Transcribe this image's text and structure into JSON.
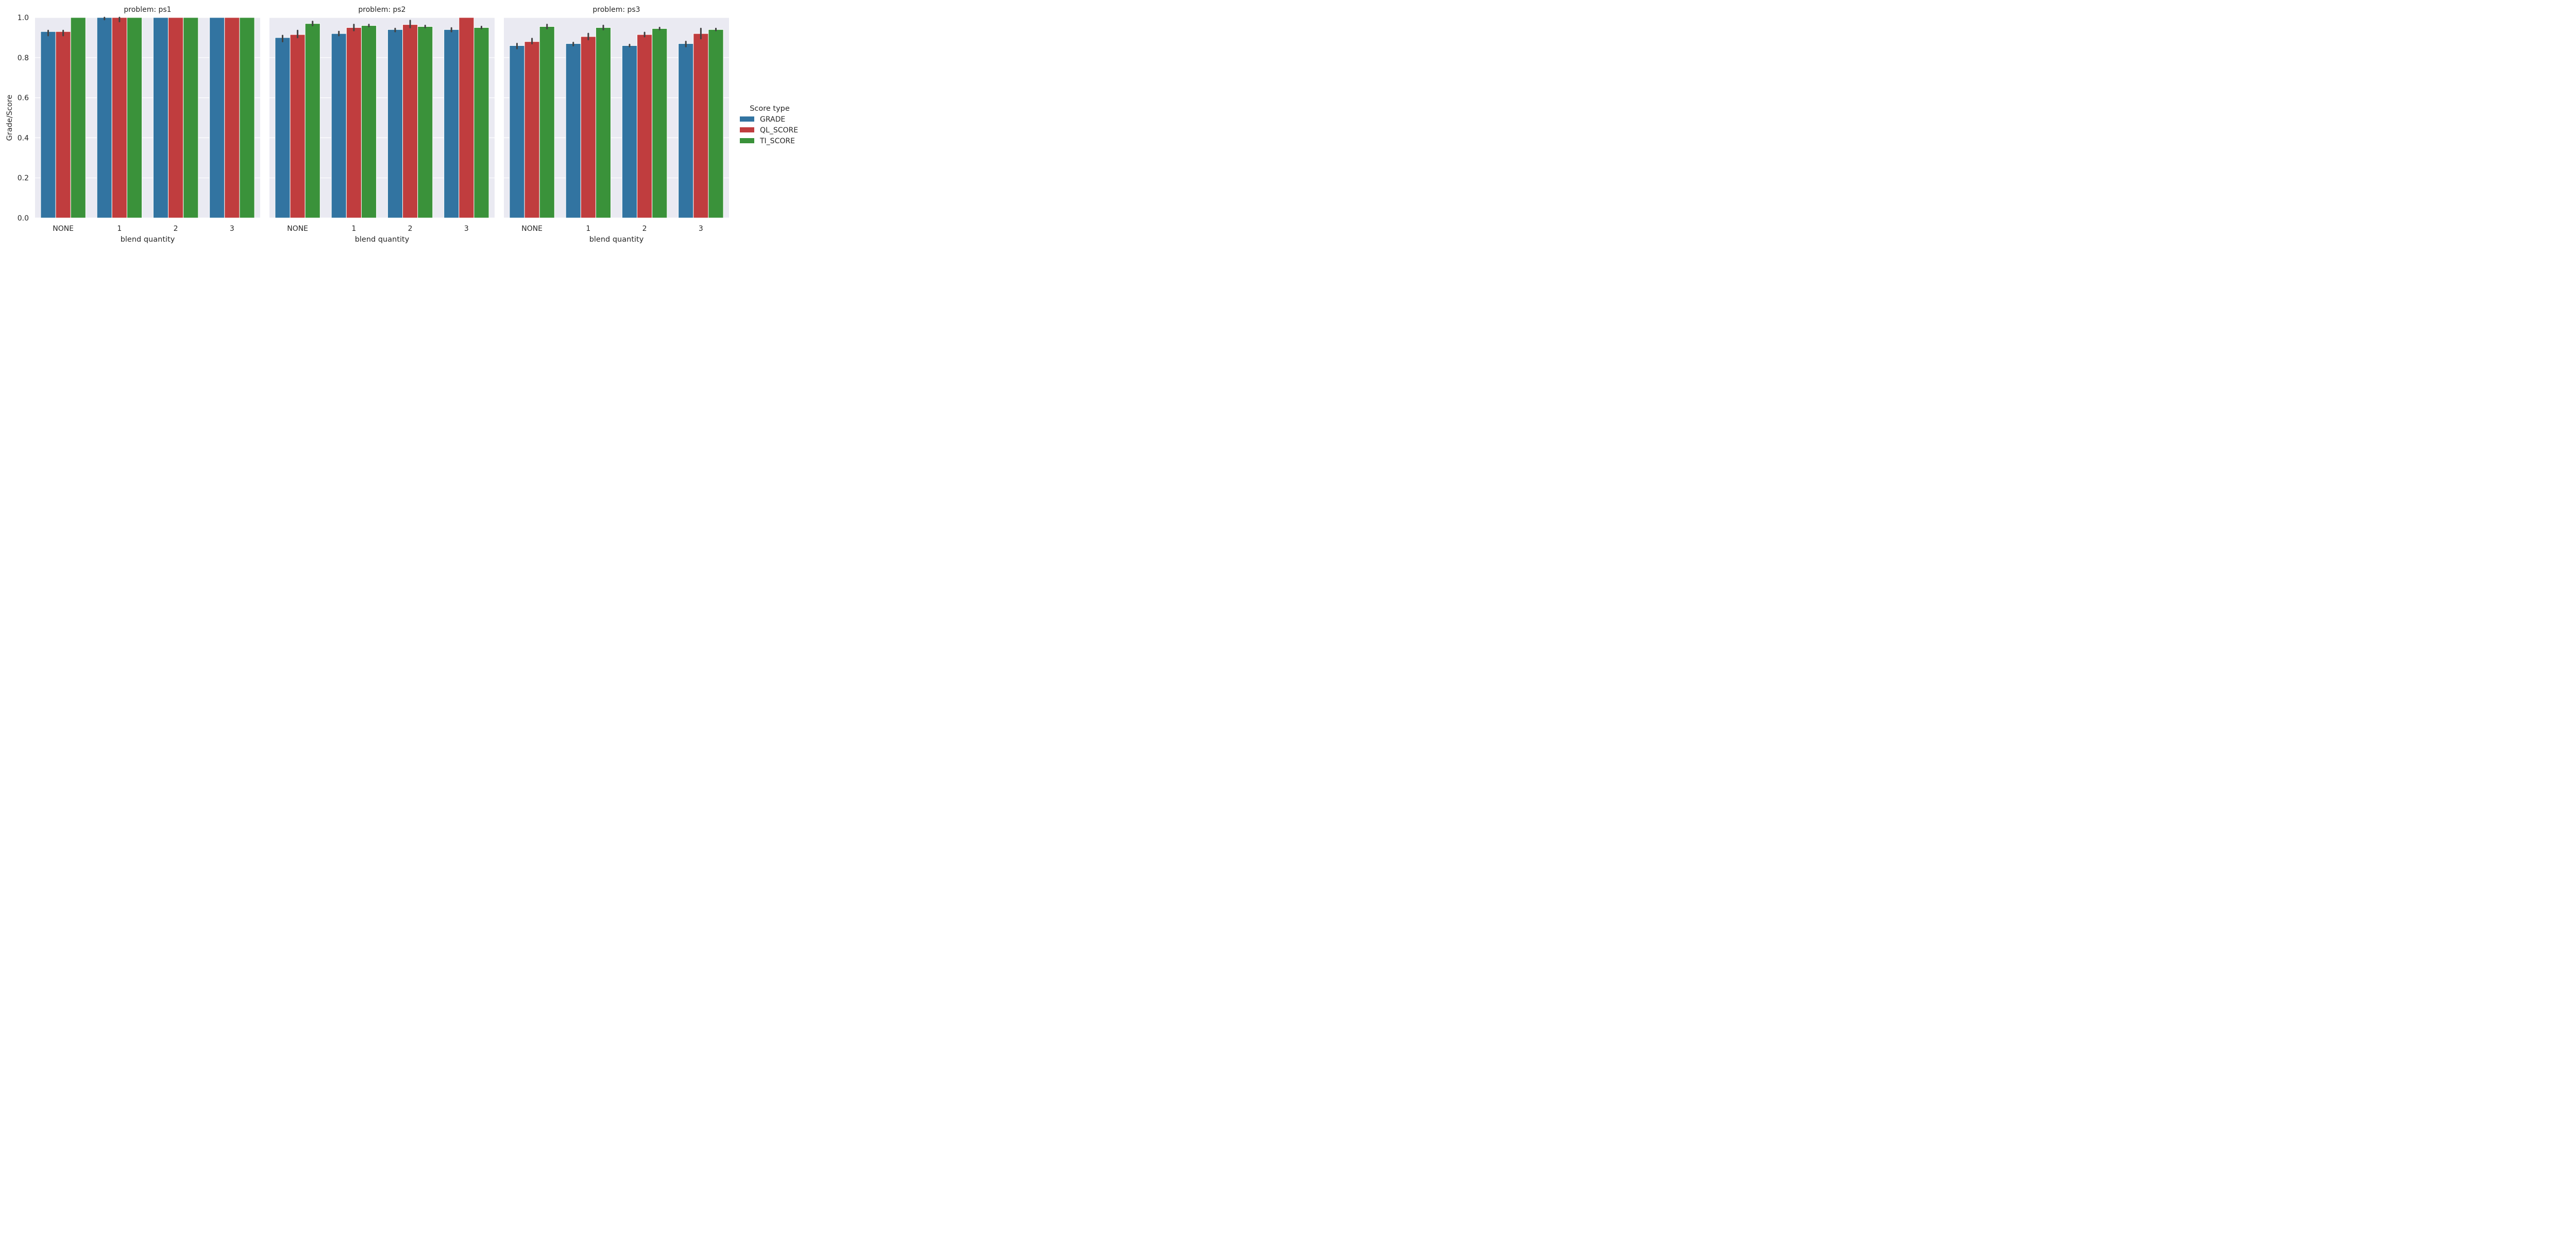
{
  "chart_data": {
    "type": "bar",
    "facet_label": "problem",
    "ylabel": "Grade/Score",
    "xlabel": "blend quantity",
    "ylim": [
      0,
      1.0
    ],
    "yticks": [
      0.0,
      0.2,
      0.4,
      0.6,
      0.8,
      1.0
    ],
    "ytick_labels": [
      "0.0",
      "0.2",
      "0.4",
      "0.6",
      "0.8",
      "1.0"
    ],
    "categories": [
      "NONE",
      "1",
      "2",
      "3"
    ],
    "legend": {
      "title": "Score type",
      "placement": "right",
      "entries": [
        "GRADE",
        "QL_SCORE",
        "TI_SCORE"
      ]
    },
    "colors": {
      "GRADE": "#3274a1",
      "QL_SCORE": "#c03d3e",
      "TI_SCORE": "#3a923a",
      "errorbar": "#424242",
      "panel_bg": "#eaeaf2",
      "grid": "#ffffff"
    },
    "grid": true,
    "panels": [
      {
        "title": "problem: ps1",
        "series": [
          {
            "name": "GRADE",
            "values": [
              0.93,
              1.0,
              1.0,
              1.0
            ],
            "err": [
              [
                0.91,
                0.935
              ],
              [
                0.99,
                1.0
              ],
              null,
              null
            ]
          },
          {
            "name": "QL_SCORE",
            "values": [
              0.93,
              1.0,
              1.0,
              1.0
            ],
            "err": [
              [
                0.91,
                0.935
              ],
              [
                0.98,
                1.0
              ],
              null,
              null
            ]
          },
          {
            "name": "TI_SCORE",
            "values": [
              1.0,
              1.0,
              1.0,
              1.0
            ],
            "err": [
              null,
              null,
              null,
              null
            ]
          }
        ]
      },
      {
        "title": "problem: ps2",
        "series": [
          {
            "name": "GRADE",
            "values": [
              0.9,
              0.92,
              0.94,
              0.94
            ],
            "err": [
              [
                0.88,
                0.91
              ],
              [
                0.91,
                0.93
              ],
              [
                0.93,
                0.945
              ],
              [
                0.93,
                0.948
              ]
            ]
          },
          {
            "name": "QL_SCORE",
            "values": [
              0.915,
              0.95,
              0.965,
              1.0
            ],
            "err": [
              [
                0.9,
                0.935
              ],
              [
                0.935,
                0.965
              ],
              [
                0.95,
                0.985
              ],
              null
            ]
          },
          {
            "name": "TI_SCORE",
            "values": [
              0.97,
              0.96,
              0.955,
              0.95
            ],
            "err": [
              [
                0.96,
                0.98
              ],
              [
                0.955,
                0.965
              ],
              [
                0.95,
                0.96
              ],
              [
                0.945,
                0.955
              ]
            ]
          }
        ]
      },
      {
        "title": "problem: ps3",
        "series": [
          {
            "name": "GRADE",
            "values": [
              0.86,
              0.87,
              0.86,
              0.87
            ],
            "err": [
              [
                0.845,
                0.87
              ],
              [
                0.86,
                0.875
              ],
              [
                0.855,
                0.865
              ],
              [
                0.855,
                0.88
              ]
            ]
          },
          {
            "name": "QL_SCORE",
            "values": [
              0.88,
              0.905,
              0.915,
              0.92
            ],
            "err": [
              [
                0.87,
                0.895
              ],
              [
                0.89,
                0.92
              ],
              [
                0.905,
                0.925
              ],
              [
                0.895,
                0.945
              ]
            ]
          },
          {
            "name": "TI_SCORE",
            "values": [
              0.955,
              0.95,
              0.945,
              0.94
            ],
            "err": [
              [
                0.945,
                0.965
              ],
              [
                0.94,
                0.96
              ],
              [
                0.94,
                0.95
              ],
              [
                0.935,
                0.945
              ]
            ]
          }
        ]
      }
    ]
  }
}
